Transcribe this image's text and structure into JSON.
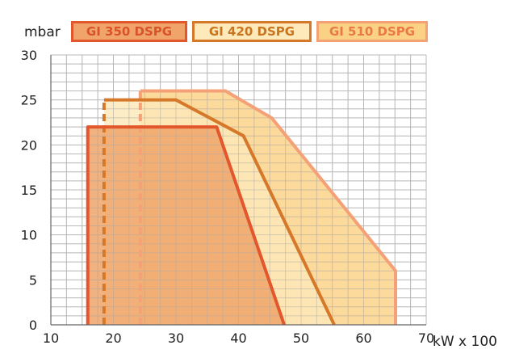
{
  "chart_data": {
    "type": "area",
    "xlabel": "kW x 100",
    "ylabel": "mbar",
    "xlim": [
      10,
      70
    ],
    "ylim": [
      0,
      30
    ],
    "x_ticks": [
      "10",
      "20",
      "30",
      "40",
      "50",
      "60",
      "70"
    ],
    "y_ticks": [
      "0",
      "5",
      "10",
      "15",
      "20",
      "25",
      "30"
    ],
    "grid": true,
    "legend_position": "top",
    "series": [
      {
        "name": "GI 350 DSPG",
        "color": "#e2572b",
        "fill": "#f0a46a",
        "text_color": "#d9532a",
        "points": [
          [
            15.9,
            0
          ],
          [
            15.9,
            22
          ],
          [
            36.5,
            22
          ],
          [
            47.3,
            0
          ]
        ]
      },
      {
        "name": "GI 420 DSPG",
        "color": "#d6782a",
        "fill": "#fde9b9",
        "text_color": "#c9741f",
        "points": [
          [
            18.5,
            0
          ],
          [
            18.5,
            25
          ],
          [
            30,
            25
          ],
          [
            40.8,
            21
          ],
          [
            55.3,
            0
          ]
        ]
      },
      {
        "name": "GI 510 DSPG",
        "color": "#f4a178",
        "fill": "#fbd183",
        "text_color": "#e97a47",
        "points": [
          [
            24.3,
            0
          ],
          [
            24.3,
            26
          ],
          [
            37.9,
            26
          ],
          [
            45.3,
            23
          ],
          [
            65.1,
            6
          ],
          [
            65.1,
            0
          ]
        ]
      }
    ]
  }
}
